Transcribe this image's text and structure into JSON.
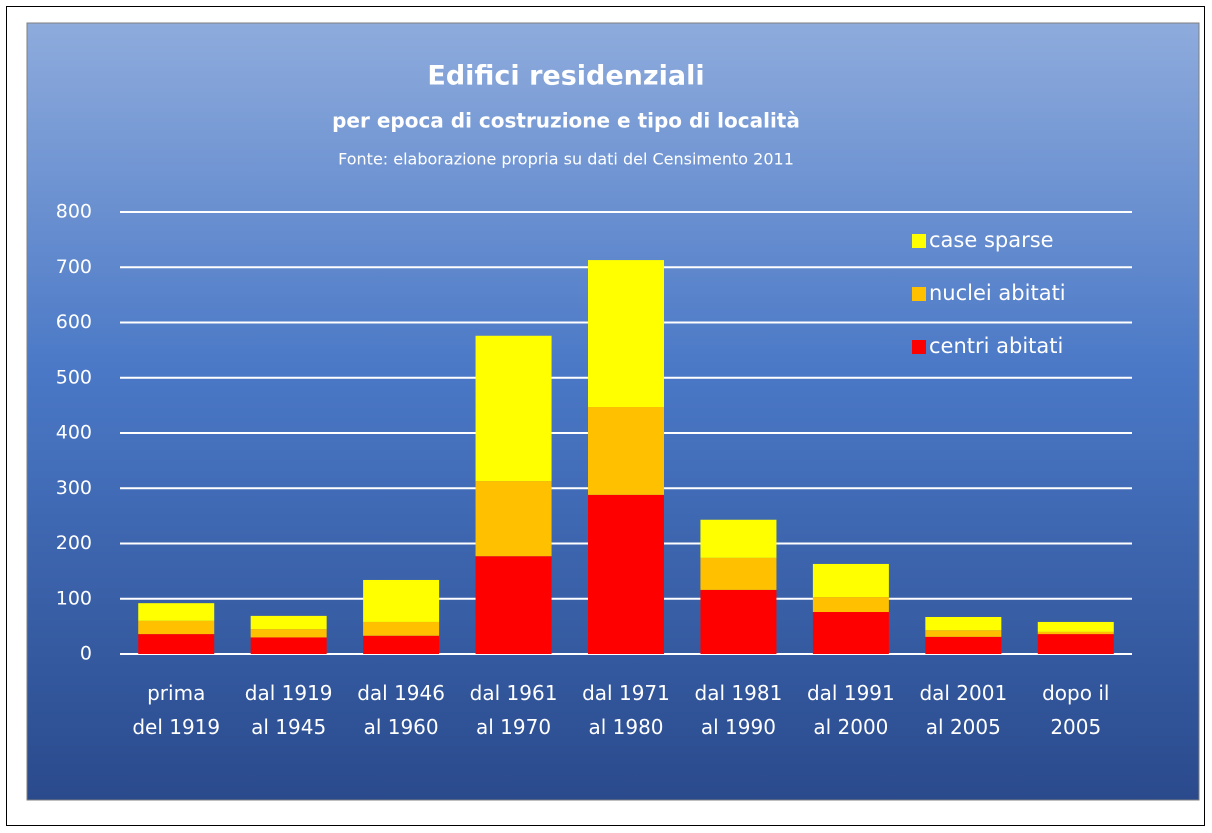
{
  "chart_data": {
    "type": "stacked_bar",
    "title": "Edifici residenziali",
    "subtitle": "per epoca di costruzione e tipo di località",
    "source": "Fonte: elaborazione propria su dati del Censimento 2011",
    "categories": [
      "prima\ndel 1919",
      "dal 1919\nal 1945",
      "dal 1946\nal 1960",
      "dal 1961\nal 1970",
      "dal 1971\nal 1980",
      "dal 1981\nal 1990",
      "dal 1991\nal 2000",
      "dal 2001\nal 2005",
      "dopo il\n2005"
    ],
    "series": [
      {
        "name": "centri abitati",
        "color": "#ff0000",
        "values": [
          36,
          30,
          33,
          177,
          288,
          116,
          76,
          31,
          36
        ]
      },
      {
        "name": "nuclei abitati",
        "color": "#ffc000",
        "values": [
          24,
          15,
          25,
          136,
          159,
          58,
          27,
          12,
          4
        ]
      },
      {
        "name": "case sparse",
        "color": "#ffff00",
        "values": [
          32,
          24,
          76,
          263,
          266,
          69,
          60,
          24,
          18
        ]
      }
    ],
    "ylim": [
      0,
      800
    ],
    "yticks": [
      0,
      100,
      200,
      300,
      400,
      500,
      600,
      700,
      800
    ],
    "grid": true,
    "legend": "top-right"
  }
}
